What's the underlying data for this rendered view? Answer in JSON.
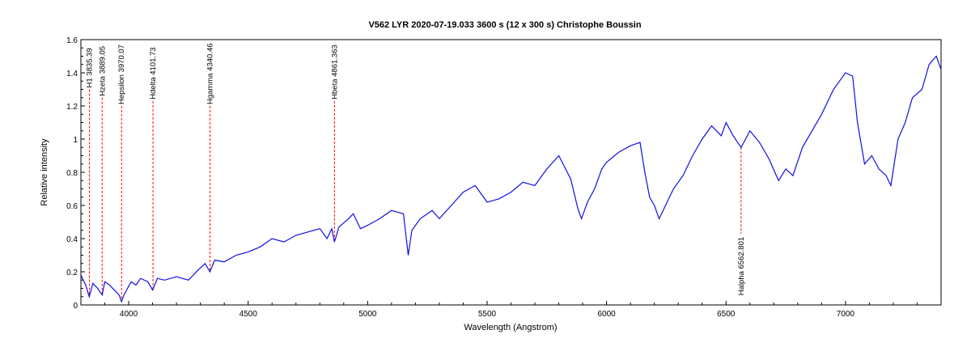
{
  "chart_data": {
    "type": "line",
    "title": "V562 LYR  2020-07-19.033  3600 s (12 x 300 s)  Christophe Boussin",
    "xlabel": "Wavelength (Angstrom)",
    "ylabel": "Relative intensity",
    "xlim": [
      3800,
      7400
    ],
    "ylim": [
      0,
      1.6
    ],
    "x_ticks": [
      4000,
      4500,
      5000,
      5500,
      6000,
      6500,
      7000
    ],
    "y_ticks": [
      0,
      0.2,
      0.4,
      0.6,
      0.8,
      1,
      1.2,
      1.4,
      1.6
    ],
    "y_tick_labels": [
      "0",
      "0.2",
      "0.4",
      "0.6",
      "0.8",
      "1",
      "1.2",
      "1.4",
      "1.6"
    ],
    "grid": false,
    "series": [
      {
        "color": "#1010e0",
        "points": [
          [
            3800,
            0.18
          ],
          [
            3820,
            0.12
          ],
          [
            3835,
            0.05
          ],
          [
            3850,
            0.13
          ],
          [
            3870,
            0.1
          ],
          [
            3889,
            0.06
          ],
          [
            3900,
            0.14
          ],
          [
            3920,
            0.12
          ],
          [
            3940,
            0.09
          ],
          [
            3960,
            0.06
          ],
          [
            3970,
            0.02
          ],
          [
            3980,
            0.06
          ],
          [
            3995,
            0.1
          ],
          [
            4010,
            0.14
          ],
          [
            4030,
            0.12
          ],
          [
            4050,
            0.16
          ],
          [
            4080,
            0.14
          ],
          [
            4100,
            0.09
          ],
          [
            4120,
            0.16
          ],
          [
            4150,
            0.15
          ],
          [
            4200,
            0.17
          ],
          [
            4250,
            0.15
          ],
          [
            4290,
            0.21
          ],
          [
            4320,
            0.25
          ],
          [
            4340,
            0.2
          ],
          [
            4360,
            0.27
          ],
          [
            4400,
            0.26
          ],
          [
            4450,
            0.3
          ],
          [
            4500,
            0.32
          ],
          [
            4550,
            0.35
          ],
          [
            4600,
            0.4
          ],
          [
            4650,
            0.38
          ],
          [
            4700,
            0.42
          ],
          [
            4750,
            0.44
          ],
          [
            4800,
            0.46
          ],
          [
            4830,
            0.4
          ],
          [
            4850,
            0.46
          ],
          [
            4861,
            0.38
          ],
          [
            4880,
            0.47
          ],
          [
            4920,
            0.52
          ],
          [
            4940,
            0.55
          ],
          [
            4970,
            0.46
          ],
          [
            5000,
            0.48
          ],
          [
            5050,
            0.52
          ],
          [
            5100,
            0.57
          ],
          [
            5150,
            0.55
          ],
          [
            5170,
            0.3
          ],
          [
            5185,
            0.45
          ],
          [
            5220,
            0.52
          ],
          [
            5270,
            0.57
          ],
          [
            5300,
            0.52
          ],
          [
            5350,
            0.6
          ],
          [
            5400,
            0.68
          ],
          [
            5450,
            0.72
          ],
          [
            5500,
            0.62
          ],
          [
            5550,
            0.64
          ],
          [
            5600,
            0.68
          ],
          [
            5650,
            0.74
          ],
          [
            5700,
            0.72
          ],
          [
            5750,
            0.82
          ],
          [
            5800,
            0.9
          ],
          [
            5850,
            0.76
          ],
          [
            5880,
            0.58
          ],
          [
            5895,
            0.52
          ],
          [
            5920,
            0.62
          ],
          [
            5950,
            0.7
          ],
          [
            5980,
            0.82
          ],
          [
            6000,
            0.86
          ],
          [
            6050,
            0.92
          ],
          [
            6100,
            0.96
          ],
          [
            6140,
            0.98
          ],
          [
            6160,
            0.8
          ],
          [
            6180,
            0.65
          ],
          [
            6200,
            0.6
          ],
          [
            6220,
            0.52
          ],
          [
            6240,
            0.58
          ],
          [
            6280,
            0.7
          ],
          [
            6320,
            0.78
          ],
          [
            6360,
            0.9
          ],
          [
            6400,
            1.0
          ],
          [
            6440,
            1.08
          ],
          [
            6480,
            1.02
          ],
          [
            6500,
            1.1
          ],
          [
            6530,
            1.02
          ],
          [
            6563,
            0.95
          ],
          [
            6600,
            1.05
          ],
          [
            6640,
            0.98
          ],
          [
            6680,
            0.88
          ],
          [
            6720,
            0.75
          ],
          [
            6750,
            0.82
          ],
          [
            6780,
            0.78
          ],
          [
            6820,
            0.95
          ],
          [
            6860,
            1.05
          ],
          [
            6900,
            1.15
          ],
          [
            6950,
            1.3
          ],
          [
            7000,
            1.4
          ],
          [
            7030,
            1.38
          ],
          [
            7050,
            1.1
          ],
          [
            7080,
            0.85
          ],
          [
            7110,
            0.9
          ],
          [
            7140,
            0.82
          ],
          [
            7170,
            0.78
          ],
          [
            7190,
            0.72
          ],
          [
            7220,
            1.0
          ],
          [
            7250,
            1.1
          ],
          [
            7280,
            1.25
          ],
          [
            7320,
            1.3
          ],
          [
            7350,
            1.45
          ],
          [
            7380,
            1.5
          ],
          [
            7400,
            1.42
          ]
        ]
      }
    ],
    "line_markers": [
      {
        "label": "H1 3835.39",
        "x": 3835.39,
        "y_top": 1.3,
        "y_bottom": 0.05
      },
      {
        "label": "Hzeta 3889.05",
        "x": 3889.05,
        "y_top": 1.25,
        "y_bottom": 0.06
      },
      {
        "label": "Hepsilon 3970.07",
        "x": 3970.07,
        "y_top": 1.2,
        "y_bottom": 0.02
      },
      {
        "label": "Hdelta 4101.73",
        "x": 4101.73,
        "y_top": 1.23,
        "y_bottom": 0.09
      },
      {
        "label": "Hgamma 4340.46",
        "x": 4340.46,
        "y_top": 1.2,
        "y_bottom": 0.2
      },
      {
        "label": "Hbeta 4861.363",
        "x": 4861.363,
        "y_top": 1.23,
        "y_bottom": 0.38
      },
      {
        "label": "Halpha 6562.801",
        "x": 6562.801,
        "y_top": 0.95,
        "y_bottom": 0.43,
        "label_below": true
      }
    ],
    "line_color": "#ff0000"
  }
}
